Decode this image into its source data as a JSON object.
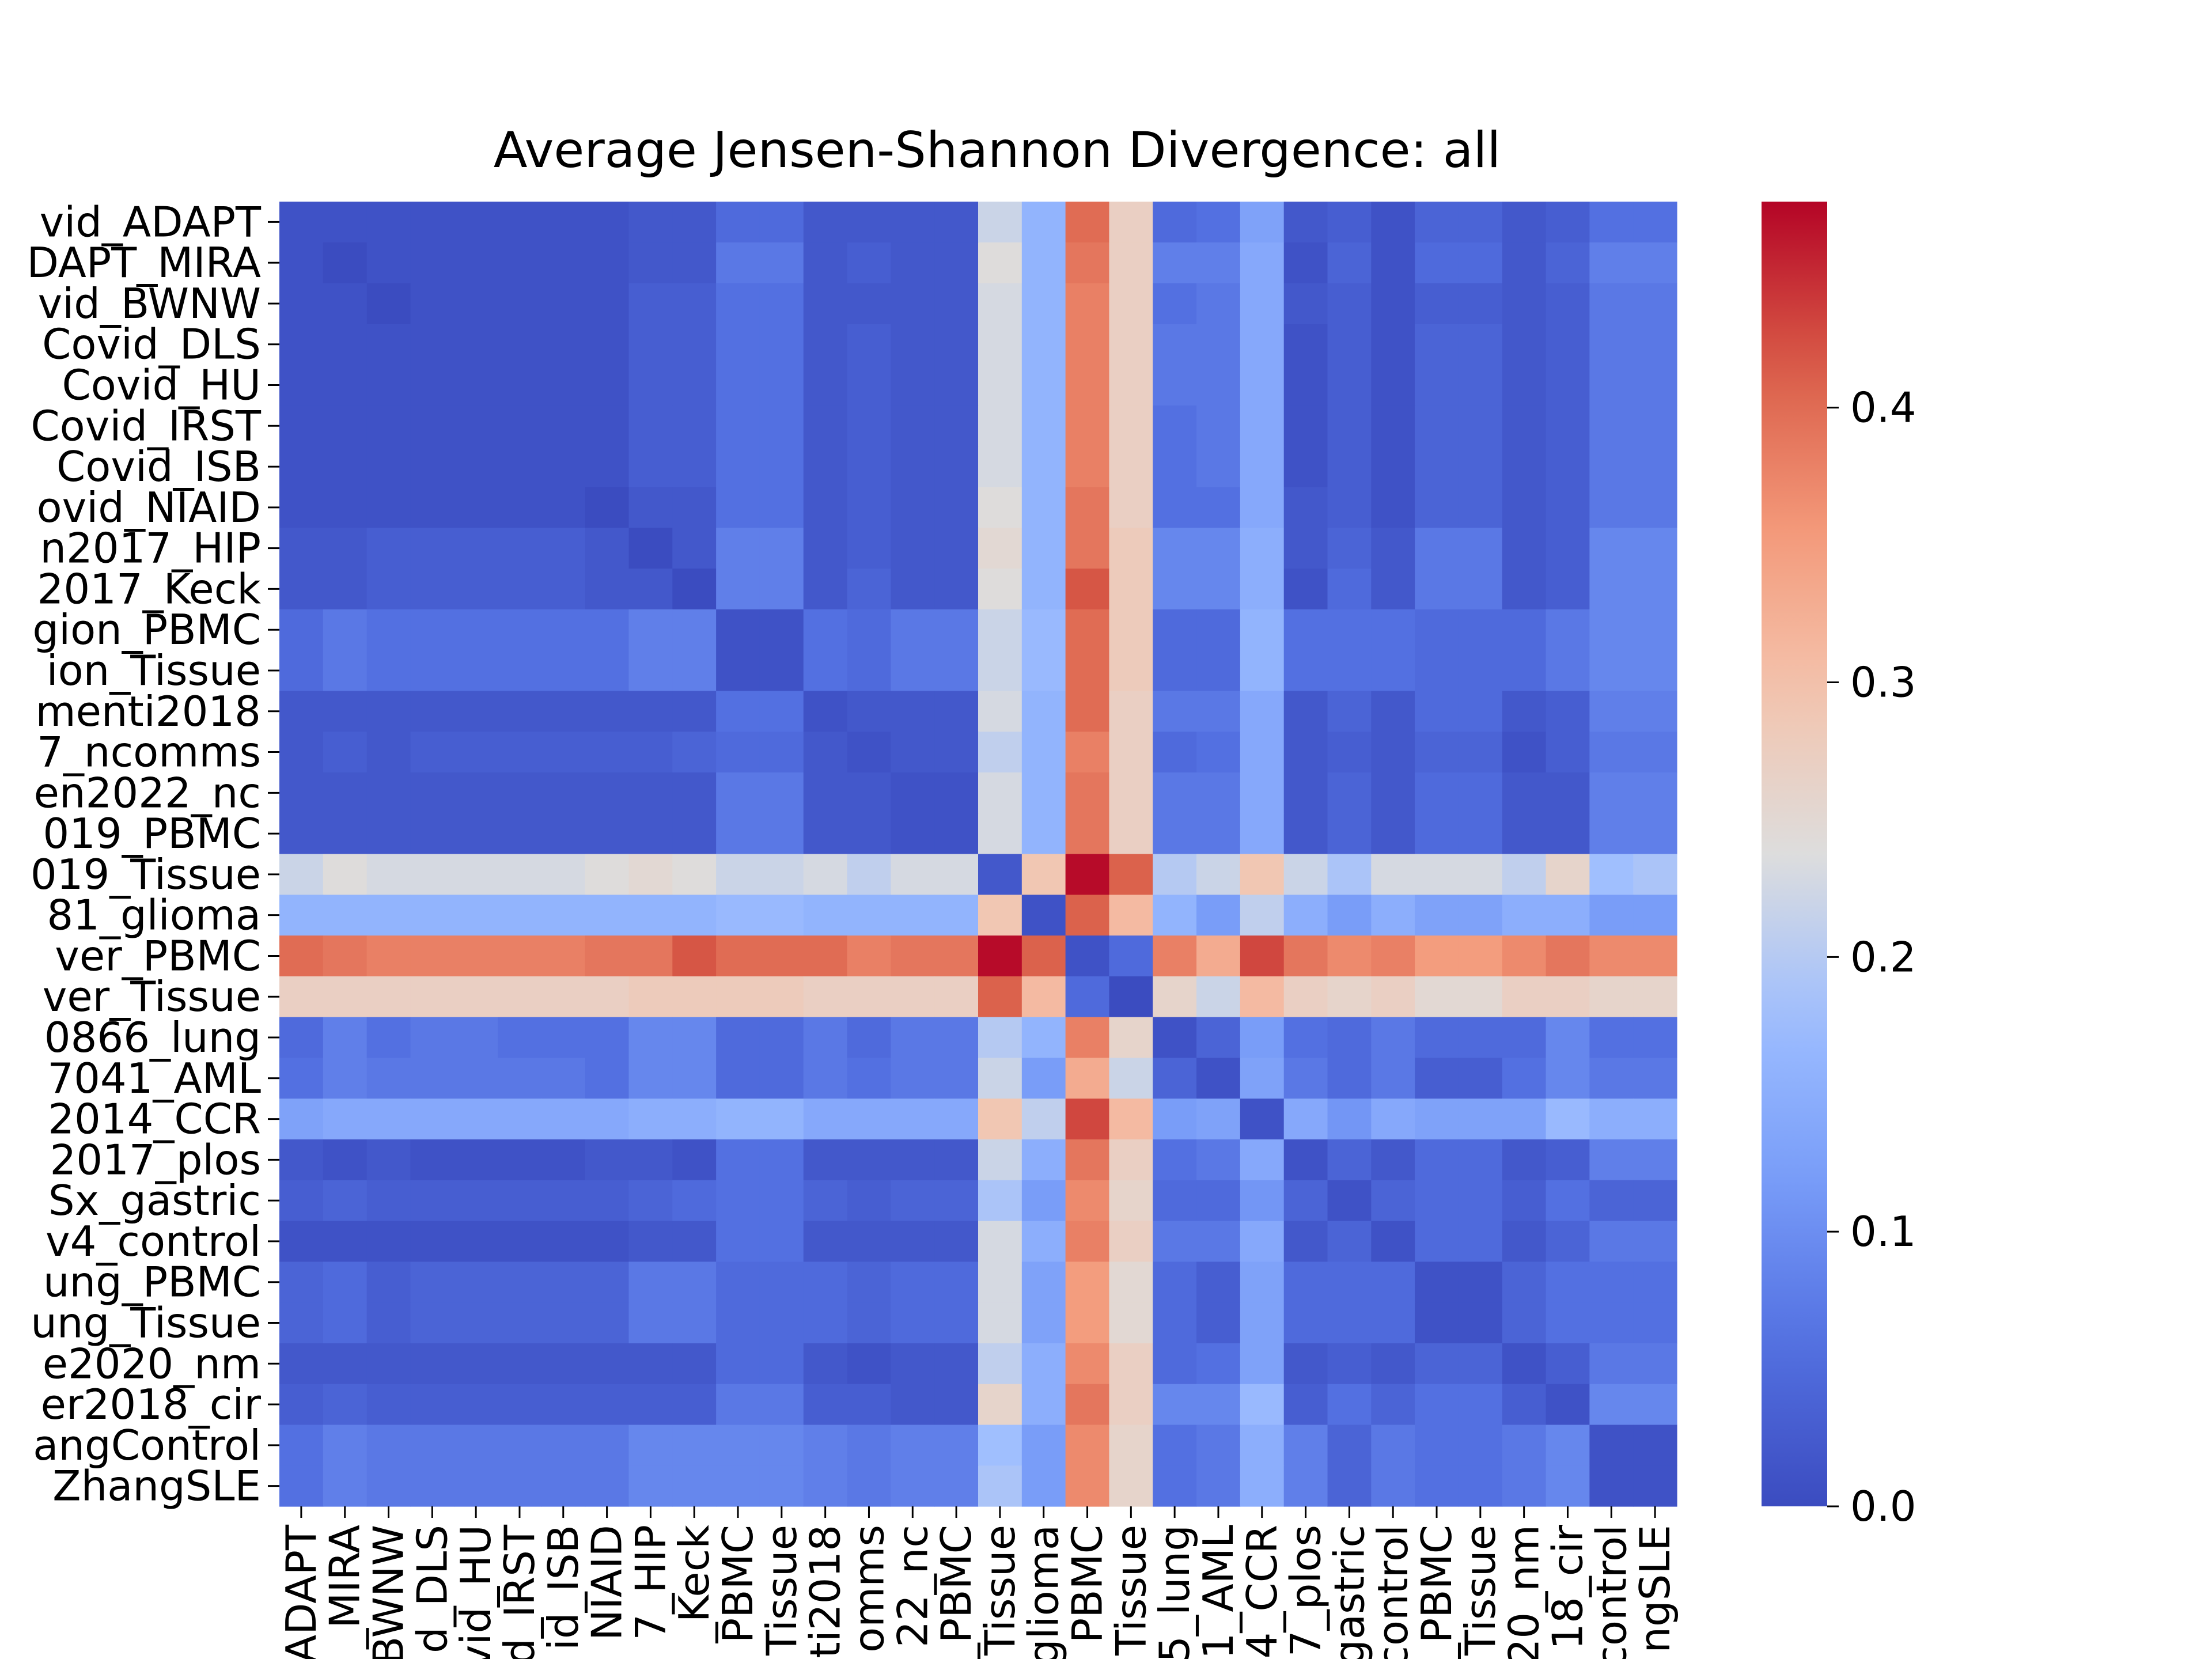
{
  "chart_data": {
    "type": "heatmap",
    "title": "Average Jensen-Shannon Divergence: all",
    "xlabel": "",
    "ylabel": "",
    "colormap": "coolwarm",
    "colorbar": {
      "range": [
        0.0,
        0.475
      ],
      "ticks": [
        0.0,
        0.1,
        0.2,
        0.3,
        0.4
      ],
      "tick_labels": [
        "0.0",
        "0.1",
        "0.2",
        "0.3",
        "0.4"
      ]
    },
    "y_tick_labels": [
      "vid_ADAPT",
      "DAPT_MIRA",
      "vid_BWNW",
      "Covid_DLS",
      "Covid_HU",
      "Covid_IRST",
      "Covid_ISB",
      "ovid_NIAID",
      "n2017_HIP",
      "2017_Keck",
      "gion_PBMC",
      "ion_Tissue",
      "menti2018",
      "7_ncomms",
      "en2022_nc",
      "019_PBMC",
      "019_Tissue",
      "81_glioma",
      "ver_PBMC",
      "ver_Tissue",
      "0866_lung",
      "7041_AML",
      "2014_CCR",
      "2017_plos",
      "Sx_gastric",
      "v4_control",
      "ung_PBMC",
      "ung_Tissue",
      "e2020_nm",
      "er2018_cir",
      "angControl",
      "ZhangSLE"
    ],
    "x_tick_labels": [
      "ADAPT",
      "_MIRA",
      "BWNW",
      "d_DLS",
      "vid_HU",
      "d_IRST",
      "id_ISB",
      "NIAID",
      "7_HIP",
      "_Keck",
      "PBMC",
      "Tissue",
      "ti2018",
      "omms",
      "22_nc",
      "_PBMC",
      "Tissue",
      "glioma",
      "PBMC",
      "Tissue",
      "5_lung",
      "1_AML",
      "4_CCR",
      "7_plos",
      "gastric",
      "control",
      "_PBMC",
      "Tissue",
      "20_nm",
      "18_cir",
      "control",
      "ngSLE"
    ],
    "values": [
      [
        0.01,
        0.01,
        0.01,
        0.01,
        0.01,
        0.01,
        0.01,
        0.01,
        0.02,
        0.02,
        0.05,
        0.05,
        0.02,
        0.02,
        0.02,
        0.02,
        0.22,
        0.16,
        0.4,
        0.27,
        0.05,
        0.06,
        0.13,
        0.02,
        0.03,
        0.01,
        0.04,
        0.04,
        0.02,
        0.03,
        0.06,
        0.06
      ],
      [
        0.01,
        0.0,
        0.01,
        0.01,
        0.01,
        0.01,
        0.01,
        0.01,
        0.02,
        0.02,
        0.07,
        0.07,
        0.02,
        0.03,
        0.02,
        0.02,
        0.24,
        0.16,
        0.39,
        0.27,
        0.08,
        0.08,
        0.14,
        0.01,
        0.04,
        0.01,
        0.05,
        0.05,
        0.02,
        0.04,
        0.08,
        0.08
      ],
      [
        0.01,
        0.01,
        0.0,
        0.01,
        0.01,
        0.01,
        0.01,
        0.01,
        0.03,
        0.03,
        0.06,
        0.06,
        0.02,
        0.02,
        0.02,
        0.02,
        0.23,
        0.16,
        0.38,
        0.27,
        0.06,
        0.07,
        0.14,
        0.02,
        0.03,
        0.01,
        0.03,
        0.03,
        0.02,
        0.03,
        0.07,
        0.07
      ],
      [
        0.01,
        0.01,
        0.01,
        0.01,
        0.01,
        0.01,
        0.01,
        0.01,
        0.03,
        0.03,
        0.06,
        0.06,
        0.02,
        0.03,
        0.02,
        0.02,
        0.23,
        0.16,
        0.38,
        0.27,
        0.07,
        0.07,
        0.14,
        0.01,
        0.03,
        0.01,
        0.04,
        0.04,
        0.02,
        0.03,
        0.07,
        0.07
      ],
      [
        0.01,
        0.01,
        0.01,
        0.01,
        0.01,
        0.01,
        0.01,
        0.01,
        0.03,
        0.03,
        0.06,
        0.06,
        0.02,
        0.03,
        0.02,
        0.02,
        0.23,
        0.16,
        0.38,
        0.27,
        0.07,
        0.07,
        0.14,
        0.01,
        0.03,
        0.01,
        0.04,
        0.04,
        0.02,
        0.03,
        0.07,
        0.07
      ],
      [
        0.01,
        0.01,
        0.01,
        0.01,
        0.01,
        0.01,
        0.01,
        0.01,
        0.03,
        0.03,
        0.06,
        0.06,
        0.02,
        0.03,
        0.02,
        0.02,
        0.23,
        0.16,
        0.38,
        0.27,
        0.06,
        0.07,
        0.14,
        0.01,
        0.03,
        0.01,
        0.04,
        0.04,
        0.02,
        0.03,
        0.07,
        0.07
      ],
      [
        0.01,
        0.01,
        0.01,
        0.01,
        0.01,
        0.01,
        0.01,
        0.01,
        0.03,
        0.03,
        0.06,
        0.06,
        0.02,
        0.03,
        0.02,
        0.02,
        0.23,
        0.16,
        0.38,
        0.27,
        0.06,
        0.07,
        0.14,
        0.01,
        0.03,
        0.01,
        0.04,
        0.04,
        0.02,
        0.03,
        0.07,
        0.07
      ],
      [
        0.01,
        0.01,
        0.01,
        0.01,
        0.01,
        0.01,
        0.01,
        0.0,
        0.02,
        0.02,
        0.06,
        0.06,
        0.02,
        0.03,
        0.02,
        0.02,
        0.24,
        0.16,
        0.39,
        0.27,
        0.06,
        0.06,
        0.14,
        0.02,
        0.03,
        0.01,
        0.04,
        0.04,
        0.02,
        0.03,
        0.07,
        0.07
      ],
      [
        0.02,
        0.02,
        0.03,
        0.03,
        0.03,
        0.03,
        0.03,
        0.02,
        0.0,
        0.02,
        0.08,
        0.08,
        0.02,
        0.03,
        0.02,
        0.02,
        0.25,
        0.16,
        0.39,
        0.28,
        0.09,
        0.09,
        0.15,
        0.02,
        0.04,
        0.02,
        0.07,
        0.07,
        0.02,
        0.03,
        0.09,
        0.09
      ],
      [
        0.02,
        0.02,
        0.03,
        0.03,
        0.03,
        0.03,
        0.03,
        0.02,
        0.02,
        0.0,
        0.08,
        0.08,
        0.02,
        0.04,
        0.02,
        0.02,
        0.24,
        0.16,
        0.42,
        0.28,
        0.09,
        0.09,
        0.15,
        0.01,
        0.05,
        0.02,
        0.07,
        0.07,
        0.02,
        0.03,
        0.09,
        0.09
      ],
      [
        0.05,
        0.07,
        0.06,
        0.06,
        0.06,
        0.06,
        0.06,
        0.06,
        0.08,
        0.08,
        0.01,
        0.01,
        0.06,
        0.05,
        0.07,
        0.07,
        0.22,
        0.17,
        0.4,
        0.28,
        0.05,
        0.05,
        0.16,
        0.06,
        0.06,
        0.06,
        0.05,
        0.05,
        0.05,
        0.07,
        0.09,
        0.09
      ],
      [
        0.05,
        0.07,
        0.06,
        0.06,
        0.06,
        0.06,
        0.06,
        0.06,
        0.08,
        0.08,
        0.01,
        0.01,
        0.06,
        0.05,
        0.07,
        0.07,
        0.22,
        0.17,
        0.4,
        0.28,
        0.05,
        0.05,
        0.16,
        0.06,
        0.06,
        0.06,
        0.05,
        0.05,
        0.05,
        0.07,
        0.09,
        0.09
      ],
      [
        0.02,
        0.02,
        0.02,
        0.02,
        0.02,
        0.02,
        0.02,
        0.02,
        0.02,
        0.02,
        0.06,
        0.06,
        0.01,
        0.02,
        0.02,
        0.02,
        0.23,
        0.16,
        0.4,
        0.27,
        0.07,
        0.07,
        0.14,
        0.02,
        0.04,
        0.02,
        0.05,
        0.05,
        0.02,
        0.03,
        0.08,
        0.08
      ],
      [
        0.02,
        0.03,
        0.02,
        0.03,
        0.03,
        0.03,
        0.03,
        0.03,
        0.03,
        0.04,
        0.05,
        0.05,
        0.02,
        0.01,
        0.02,
        0.02,
        0.21,
        0.16,
        0.38,
        0.27,
        0.05,
        0.06,
        0.14,
        0.02,
        0.03,
        0.02,
        0.04,
        0.04,
        0.01,
        0.03,
        0.07,
        0.07
      ],
      [
        0.02,
        0.02,
        0.02,
        0.02,
        0.02,
        0.02,
        0.02,
        0.02,
        0.02,
        0.02,
        0.07,
        0.07,
        0.02,
        0.02,
        0.01,
        0.01,
        0.23,
        0.16,
        0.39,
        0.27,
        0.07,
        0.07,
        0.14,
        0.02,
        0.04,
        0.02,
        0.05,
        0.05,
        0.02,
        0.02,
        0.08,
        0.08
      ],
      [
        0.02,
        0.02,
        0.02,
        0.02,
        0.02,
        0.02,
        0.02,
        0.02,
        0.02,
        0.02,
        0.07,
        0.07,
        0.02,
        0.02,
        0.01,
        0.01,
        0.23,
        0.16,
        0.39,
        0.27,
        0.07,
        0.07,
        0.14,
        0.02,
        0.04,
        0.02,
        0.05,
        0.05,
        0.02,
        0.02,
        0.08,
        0.08
      ],
      [
        0.22,
        0.24,
        0.23,
        0.23,
        0.23,
        0.23,
        0.23,
        0.24,
        0.25,
        0.24,
        0.22,
        0.22,
        0.23,
        0.21,
        0.23,
        0.23,
        0.02,
        0.29,
        0.47,
        0.41,
        0.2,
        0.22,
        0.29,
        0.22,
        0.19,
        0.23,
        0.23,
        0.23,
        0.21,
        0.26,
        0.18,
        0.19
      ],
      [
        0.16,
        0.16,
        0.16,
        0.16,
        0.16,
        0.16,
        0.16,
        0.16,
        0.16,
        0.16,
        0.17,
        0.17,
        0.16,
        0.16,
        0.16,
        0.16,
        0.29,
        0.01,
        0.41,
        0.31,
        0.16,
        0.12,
        0.21,
        0.15,
        0.12,
        0.15,
        0.13,
        0.13,
        0.15,
        0.15,
        0.12,
        0.12
      ],
      [
        0.4,
        0.39,
        0.38,
        0.38,
        0.38,
        0.38,
        0.38,
        0.39,
        0.39,
        0.42,
        0.4,
        0.4,
        0.4,
        0.38,
        0.39,
        0.39,
        0.47,
        0.41,
        0.01,
        0.05,
        0.38,
        0.33,
        0.43,
        0.39,
        0.37,
        0.38,
        0.35,
        0.35,
        0.37,
        0.39,
        0.37,
        0.37
      ],
      [
        0.27,
        0.27,
        0.27,
        0.27,
        0.27,
        0.27,
        0.27,
        0.27,
        0.28,
        0.28,
        0.28,
        0.28,
        0.27,
        0.27,
        0.27,
        0.27,
        0.41,
        0.31,
        0.05,
        0.0,
        0.26,
        0.22,
        0.31,
        0.27,
        0.26,
        0.27,
        0.25,
        0.25,
        0.27,
        0.27,
        0.26,
        0.26
      ],
      [
        0.05,
        0.08,
        0.06,
        0.07,
        0.07,
        0.06,
        0.06,
        0.06,
        0.09,
        0.09,
        0.05,
        0.05,
        0.07,
        0.05,
        0.07,
        0.07,
        0.2,
        0.16,
        0.38,
        0.26,
        0.01,
        0.04,
        0.12,
        0.06,
        0.05,
        0.07,
        0.05,
        0.05,
        0.05,
        0.09,
        0.06,
        0.06
      ],
      [
        0.06,
        0.08,
        0.07,
        0.07,
        0.07,
        0.07,
        0.07,
        0.06,
        0.09,
        0.09,
        0.05,
        0.05,
        0.07,
        0.06,
        0.07,
        0.07,
        0.22,
        0.12,
        0.33,
        0.22,
        0.04,
        0.01,
        0.13,
        0.07,
        0.05,
        0.07,
        0.03,
        0.03,
        0.06,
        0.09,
        0.07,
        0.07
      ],
      [
        0.13,
        0.14,
        0.14,
        0.14,
        0.14,
        0.14,
        0.14,
        0.14,
        0.15,
        0.15,
        0.16,
        0.16,
        0.14,
        0.14,
        0.14,
        0.14,
        0.29,
        0.21,
        0.43,
        0.31,
        0.12,
        0.13,
        0.01,
        0.14,
        0.11,
        0.14,
        0.13,
        0.13,
        0.13,
        0.17,
        0.15,
        0.15
      ],
      [
        0.02,
        0.01,
        0.02,
        0.01,
        0.01,
        0.01,
        0.01,
        0.02,
        0.02,
        0.01,
        0.06,
        0.06,
        0.02,
        0.02,
        0.02,
        0.02,
        0.22,
        0.15,
        0.39,
        0.27,
        0.06,
        0.07,
        0.14,
        0.01,
        0.04,
        0.02,
        0.05,
        0.05,
        0.02,
        0.03,
        0.08,
        0.08
      ],
      [
        0.03,
        0.04,
        0.03,
        0.03,
        0.03,
        0.03,
        0.03,
        0.03,
        0.04,
        0.05,
        0.06,
        0.06,
        0.04,
        0.03,
        0.04,
        0.04,
        0.19,
        0.12,
        0.37,
        0.26,
        0.05,
        0.05,
        0.11,
        0.04,
        0.01,
        0.04,
        0.05,
        0.05,
        0.03,
        0.06,
        0.04,
        0.04
      ],
      [
        0.01,
        0.01,
        0.01,
        0.01,
        0.01,
        0.01,
        0.01,
        0.01,
        0.02,
        0.02,
        0.06,
        0.06,
        0.02,
        0.02,
        0.02,
        0.02,
        0.23,
        0.15,
        0.38,
        0.27,
        0.07,
        0.07,
        0.14,
        0.02,
        0.04,
        0.01,
        0.05,
        0.05,
        0.02,
        0.04,
        0.07,
        0.07
      ],
      [
        0.04,
        0.05,
        0.03,
        0.04,
        0.04,
        0.04,
        0.04,
        0.04,
        0.07,
        0.07,
        0.05,
        0.05,
        0.05,
        0.04,
        0.05,
        0.05,
        0.23,
        0.13,
        0.35,
        0.25,
        0.05,
        0.03,
        0.13,
        0.05,
        0.05,
        0.05,
        0.01,
        0.01,
        0.04,
        0.06,
        0.06,
        0.06
      ],
      [
        0.04,
        0.05,
        0.03,
        0.04,
        0.04,
        0.04,
        0.04,
        0.04,
        0.07,
        0.07,
        0.05,
        0.05,
        0.05,
        0.04,
        0.05,
        0.05,
        0.23,
        0.13,
        0.35,
        0.25,
        0.05,
        0.03,
        0.13,
        0.05,
        0.05,
        0.05,
        0.01,
        0.01,
        0.04,
        0.06,
        0.06,
        0.06
      ],
      [
        0.02,
        0.02,
        0.02,
        0.02,
        0.02,
        0.02,
        0.02,
        0.02,
        0.02,
        0.02,
        0.05,
        0.05,
        0.02,
        0.01,
        0.02,
        0.02,
        0.21,
        0.15,
        0.37,
        0.27,
        0.05,
        0.06,
        0.13,
        0.02,
        0.03,
        0.02,
        0.04,
        0.04,
        0.01,
        0.03,
        0.07,
        0.07
      ],
      [
        0.03,
        0.04,
        0.03,
        0.03,
        0.03,
        0.03,
        0.03,
        0.03,
        0.03,
        0.03,
        0.07,
        0.07,
        0.03,
        0.03,
        0.02,
        0.02,
        0.26,
        0.15,
        0.39,
        0.27,
        0.09,
        0.09,
        0.17,
        0.03,
        0.06,
        0.04,
        0.06,
        0.06,
        0.03,
        0.01,
        0.09,
        0.09
      ],
      [
        0.06,
        0.08,
        0.07,
        0.07,
        0.07,
        0.07,
        0.07,
        0.07,
        0.09,
        0.09,
        0.09,
        0.09,
        0.08,
        0.07,
        0.08,
        0.08,
        0.18,
        0.12,
        0.37,
        0.26,
        0.06,
        0.07,
        0.15,
        0.08,
        0.04,
        0.07,
        0.06,
        0.06,
        0.07,
        0.09,
        0.01,
        0.01
      ],
      [
        0.06,
        0.08,
        0.07,
        0.07,
        0.07,
        0.07,
        0.07,
        0.07,
        0.09,
        0.09,
        0.09,
        0.09,
        0.08,
        0.07,
        0.08,
        0.08,
        0.19,
        0.12,
        0.37,
        0.26,
        0.06,
        0.07,
        0.15,
        0.08,
        0.04,
        0.07,
        0.06,
        0.06,
        0.07,
        0.09,
        0.01,
        0.01
      ]
    ]
  }
}
